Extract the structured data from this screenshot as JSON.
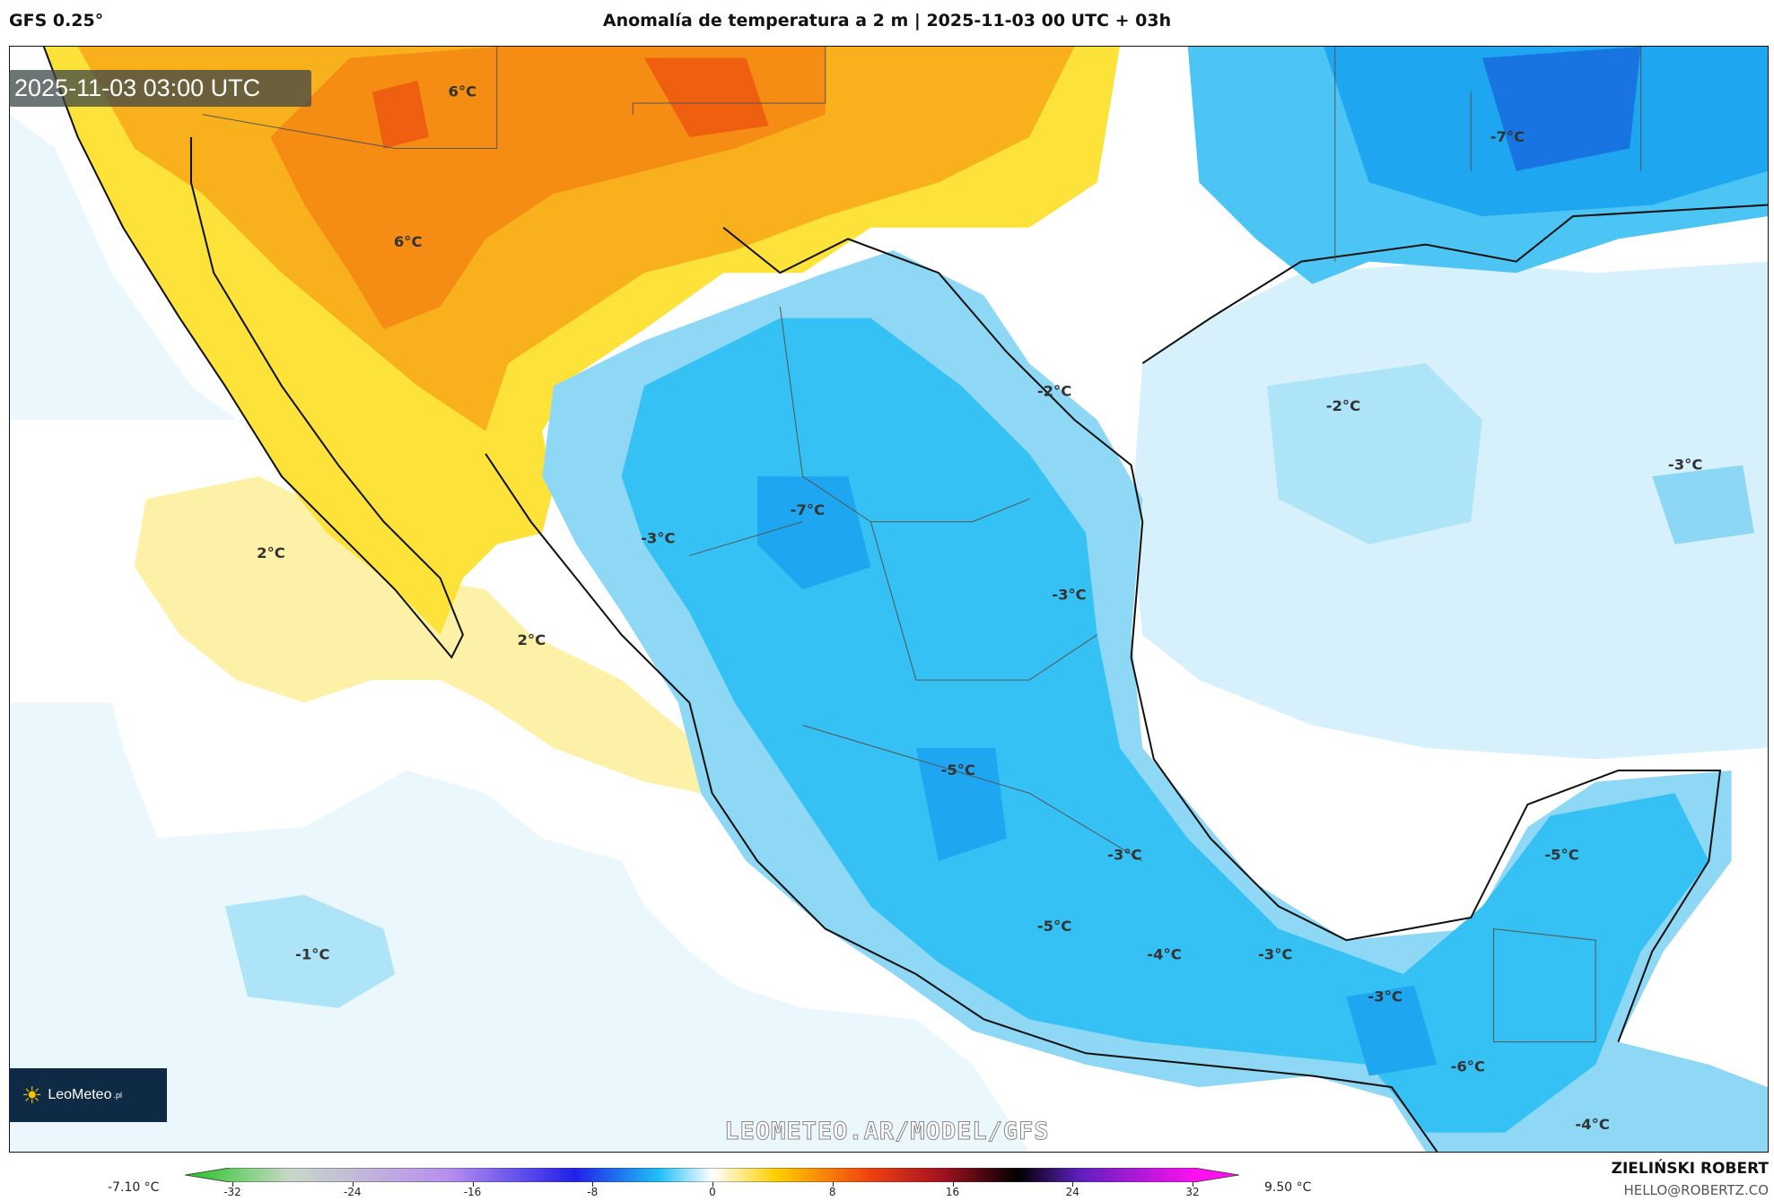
{
  "header": {
    "model": "GFS 0.25°",
    "title": "Anomalía de temperatura a 2 m | 2025-11-03 00 UTC + 03h"
  },
  "timestamp": "2025-11-03 03:00 UTC",
  "logo": {
    "text": "LeoMeteo",
    "suffix": ".pl"
  },
  "watermark": "LEOMETEO.AR/MODEL/GFS",
  "map_labels": [
    "6°C",
    "6°C",
    "-7°C",
    "-2°C",
    "-2°C",
    "-3°C",
    "-7°C",
    "-3°C",
    "2°C",
    "-3°C",
    "2°C",
    "-5°C",
    "-5°C",
    "-3°C",
    "-1°C",
    "-5°C",
    "-4°C",
    "-3°C",
    "-3°C",
    "-6°C",
    "-4°C"
  ],
  "colorbar": {
    "min_label": "-7.10 °C",
    "max_label": "9.50 °C",
    "ticks": [
      "-32",
      "-24",
      "-16",
      "-8",
      "0",
      "8",
      "16",
      "24",
      "32"
    ]
  },
  "credits": {
    "author": "ZIELIŃSKI ROBERT",
    "email": "HELLO@ROBERTZ.CO"
  },
  "colors": {
    "warm": "#f7a21b",
    "hot": "#f26a11",
    "yellow": "#fde23a",
    "paleyellow": "#fdf1a8",
    "blue": "#16b6f0",
    "deepblue": "#1e8ff0",
    "paleblue": "#d7f1fc"
  }
}
